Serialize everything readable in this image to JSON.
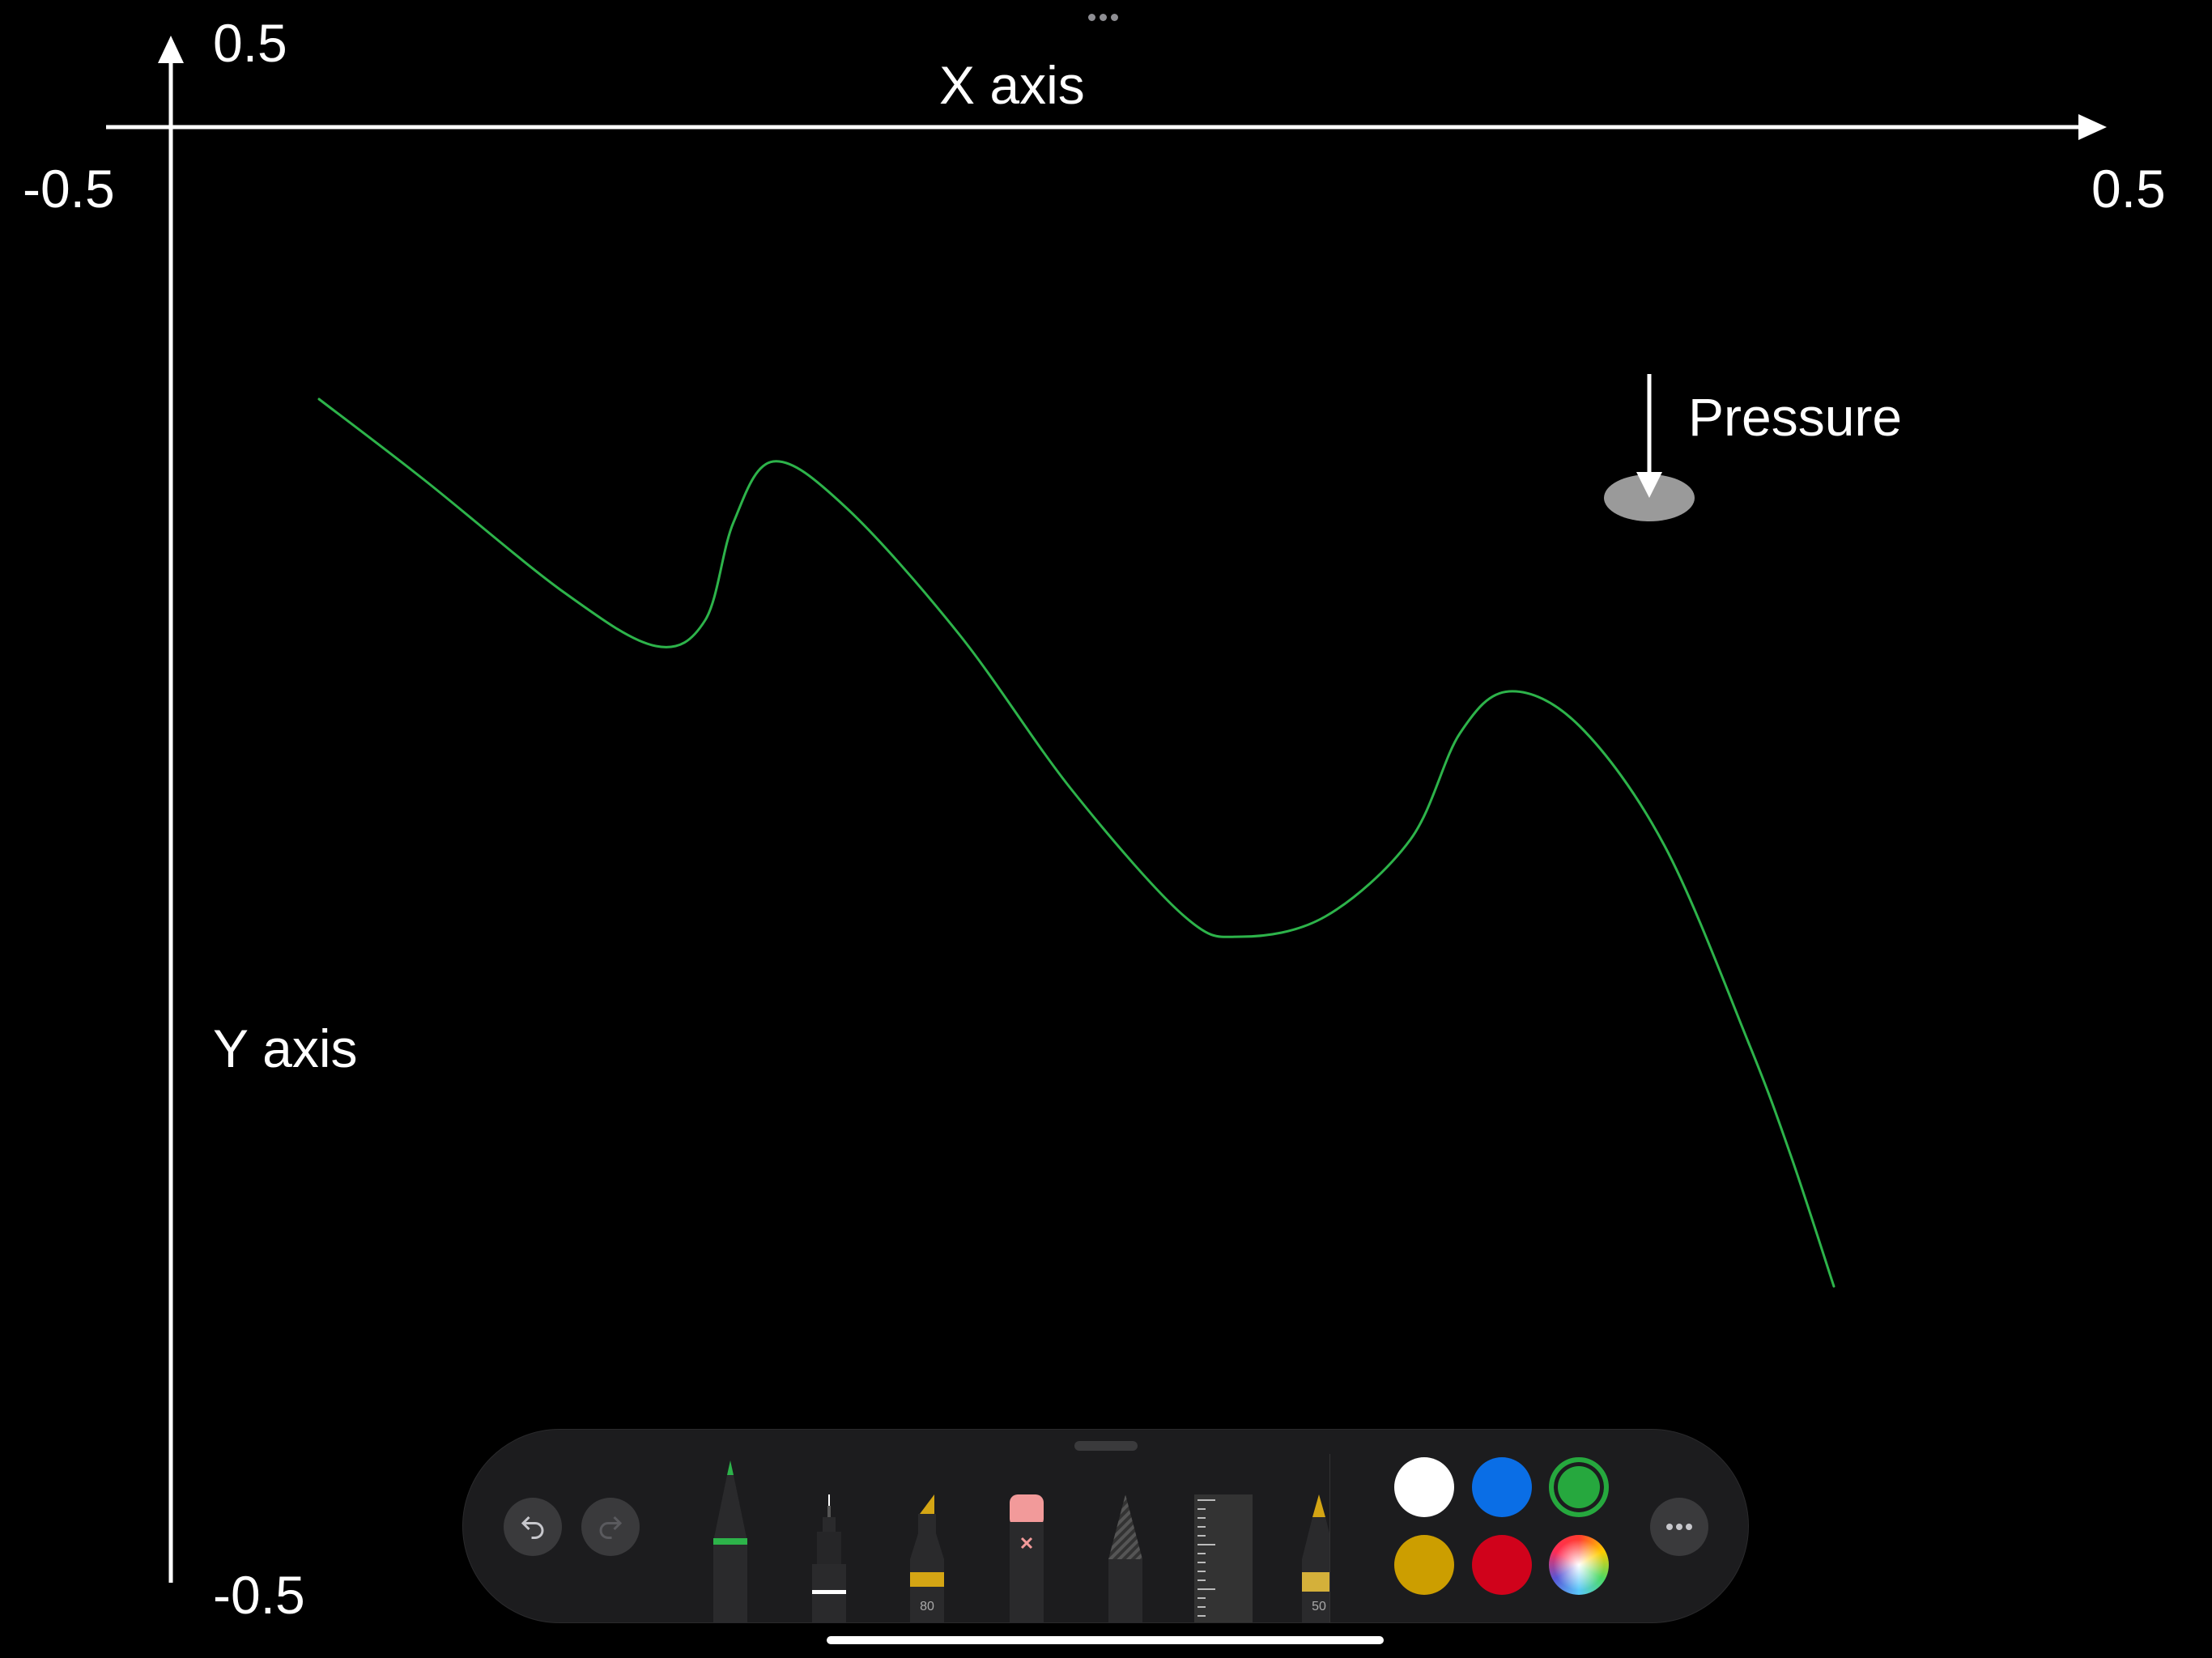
{
  "canvas": {
    "x_axis_label": "X axis",
    "y_axis_label": "Y axis",
    "x_min_label": "-0.5",
    "x_max_label": "0.5",
    "y_max_label": "0.5",
    "y_min_label": "-0.5",
    "pressure_label": "Pressure",
    "stroke_color": "#2db34a"
  },
  "toolbar": {
    "undo_icon": "undo-arrow-icon",
    "redo_icon": "redo-arrow-icon",
    "tools": [
      {
        "name": "pen",
        "accent": "#2db34a"
      },
      {
        "name": "fineliner",
        "accent": "#ffffff"
      },
      {
        "name": "marker",
        "accent": "#d4a514",
        "size_label": "80"
      },
      {
        "name": "eraser",
        "accent": "#f29a9a"
      },
      {
        "name": "pencil",
        "accent": "#555555"
      },
      {
        "name": "ruler",
        "accent": "#3a3a3a"
      },
      {
        "name": "watercolor",
        "accent": "#d4a514",
        "size_label": "50"
      }
    ],
    "colors": [
      {
        "name": "white",
        "hex": "#ffffff"
      },
      {
        "name": "blue",
        "hex": "#0a6ee6"
      },
      {
        "name": "green",
        "hex": "#26a83e",
        "selected": true
      },
      {
        "name": "yellow",
        "hex": "#cc9e00"
      },
      {
        "name": "red",
        "hex": "#d0021b"
      },
      {
        "name": "color-wheel",
        "hex": "multicolor"
      }
    ],
    "more_icon": "ellipsis-icon"
  }
}
